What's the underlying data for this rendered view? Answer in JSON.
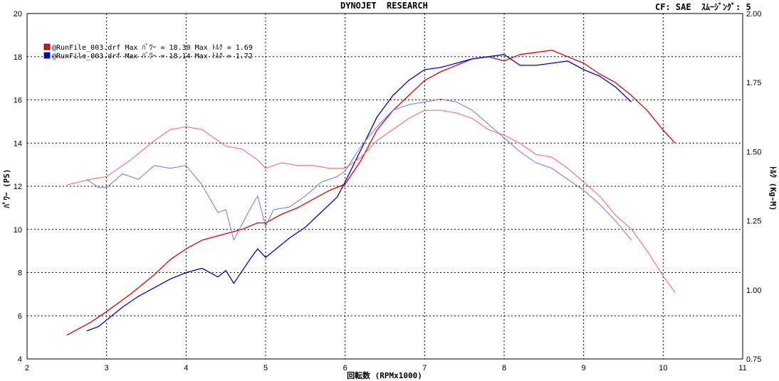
{
  "header": {
    "title": "DYNOJET  RESEARCH",
    "cf": "CF: SAE  ｽﾑｰｼﾞﾝｸﾞ: 5"
  },
  "chart_data": {
    "type": "line",
    "xlabel": "回転数 (RPMx1000)",
    "ylabel_left": "ﾊﾟﾜｰ (PS)",
    "ylabel_right": "ﾄﾙｸ (Kg-M)",
    "xlim": [
      2,
      11
    ],
    "ylim_left": [
      4,
      20
    ],
    "ylim_right": [
      0.75,
      2.0
    ],
    "x_ticks": [
      "2",
      "3",
      "4",
      "5",
      "6",
      "7",
      "8",
      "9",
      "10",
      "11"
    ],
    "y_left_ticks": [
      "4",
      "6",
      "8",
      "10",
      "12",
      "14",
      "16",
      "18",
      "20"
    ],
    "y_right_ticks": [
      "0.75",
      "1.00",
      "1.25",
      "1.50",
      "1.75",
      "2.00"
    ],
    "grid": true,
    "legend": [
      {
        "text": "@RunFile_003.drf Max ﾊﾟﾜｰ = 18.30     Max ﾄﾙｸ = 1.69",
        "color": "#ff0000"
      },
      {
        "text": "@RunFile_003.drf Max ﾊﾟﾜｰ = 18.14     Max ﾄﾙｸ = 1.72",
        "color": "#0000ff"
      }
    ],
    "series": [
      {
        "kind": "power",
        "axis": "left",
        "color": "#e00000",
        "x": [
          2.5,
          2.8,
          3.0,
          3.3,
          3.6,
          3.8,
          4.0,
          4.2,
          4.5,
          4.7,
          4.9,
          5.0,
          5.2,
          5.4,
          5.6,
          5.8,
          6.0,
          6.2,
          6.4,
          6.6,
          6.8,
          7.0,
          7.2,
          7.4,
          7.6,
          7.8,
          8.0,
          8.2,
          8.4,
          8.6,
          8.8,
          9.0,
          9.2,
          9.4,
          9.6,
          9.8,
          10.0,
          10.15
        ],
        "y": [
          5.1,
          5.7,
          6.2,
          7.0,
          7.9,
          8.6,
          9.1,
          9.5,
          9.8,
          10.0,
          10.3,
          10.3,
          10.7,
          11.0,
          11.4,
          11.8,
          12.1,
          13.2,
          14.6,
          15.5,
          16.2,
          16.9,
          17.3,
          17.6,
          17.9,
          18.0,
          17.8,
          18.1,
          18.2,
          18.3,
          18.0,
          17.7,
          17.2,
          16.8,
          16.2,
          15.5,
          14.6,
          14.0
        ]
      },
      {
        "kind": "power",
        "axis": "left",
        "color": "#0000cc",
        "x": [
          2.75,
          2.9,
          3.0,
          3.2,
          3.4,
          3.6,
          3.8,
          4.0,
          4.2,
          4.4,
          4.5,
          4.6,
          4.8,
          4.9,
          5.0,
          5.1,
          5.3,
          5.5,
          5.7,
          5.9,
          6.0,
          6.2,
          6.4,
          6.6,
          6.8,
          7.0,
          7.2,
          7.4,
          7.6,
          7.8,
          8.0,
          8.2,
          8.4,
          8.6,
          8.8,
          9.0,
          9.2,
          9.4,
          9.6
        ],
        "y": [
          5.3,
          5.5,
          5.8,
          6.4,
          6.9,
          7.3,
          7.7,
          8.0,
          8.2,
          7.8,
          8.1,
          7.5,
          8.6,
          9.1,
          8.7,
          9.0,
          9.6,
          10.1,
          10.8,
          11.5,
          12.2,
          13.7,
          15.2,
          16.2,
          16.9,
          17.4,
          17.5,
          17.7,
          17.9,
          18.0,
          18.1,
          17.6,
          17.6,
          17.7,
          17.8,
          17.4,
          17.1,
          16.6,
          15.9
        ]
      },
      {
        "kind": "torque",
        "axis": "right",
        "color": "#ff6060",
        "x": [
          2.5,
          2.8,
          3.0,
          3.3,
          3.6,
          3.8,
          4.0,
          4.2,
          4.5,
          4.7,
          4.9,
          5.0,
          5.2,
          5.4,
          5.6,
          5.8,
          6.0,
          6.2,
          6.4,
          6.6,
          6.8,
          7.0,
          7.2,
          7.4,
          7.6,
          7.8,
          8.0,
          8.2,
          8.4,
          8.6,
          8.8,
          9.0,
          9.2,
          9.4,
          9.6,
          9.8,
          10.0,
          10.15
        ],
        "y": [
          1.38,
          1.4,
          1.41,
          1.47,
          1.54,
          1.58,
          1.59,
          1.58,
          1.52,
          1.51,
          1.47,
          1.44,
          1.46,
          1.45,
          1.45,
          1.44,
          1.44,
          1.48,
          1.54,
          1.58,
          1.62,
          1.65,
          1.65,
          1.64,
          1.62,
          1.58,
          1.56,
          1.53,
          1.49,
          1.48,
          1.44,
          1.39,
          1.34,
          1.27,
          1.22,
          1.14,
          1.05,
          0.99
        ]
      },
      {
        "kind": "torque",
        "axis": "right",
        "color": "#7070ff",
        "x": [
          2.75,
          2.9,
          3.0,
          3.2,
          3.4,
          3.6,
          3.8,
          4.0,
          4.2,
          4.4,
          4.5,
          4.6,
          4.8,
          4.9,
          5.0,
          5.1,
          5.3,
          5.5,
          5.7,
          5.9,
          6.0,
          6.2,
          6.4,
          6.6,
          6.8,
          7.0,
          7.2,
          7.4,
          7.6,
          7.8,
          8.0,
          8.2,
          8.4,
          8.6,
          8.8,
          9.0,
          9.2,
          9.4,
          9.6
        ],
        "y": [
          1.4,
          1.37,
          1.37,
          1.42,
          1.4,
          1.45,
          1.44,
          1.45,
          1.38,
          1.28,
          1.29,
          1.18,
          1.29,
          1.34,
          1.23,
          1.29,
          1.3,
          1.34,
          1.39,
          1.41,
          1.43,
          1.52,
          1.59,
          1.65,
          1.67,
          1.68,
          1.69,
          1.68,
          1.65,
          1.6,
          1.55,
          1.5,
          1.46,
          1.44,
          1.4,
          1.36,
          1.31,
          1.25,
          1.18
        ]
      }
    ]
  }
}
